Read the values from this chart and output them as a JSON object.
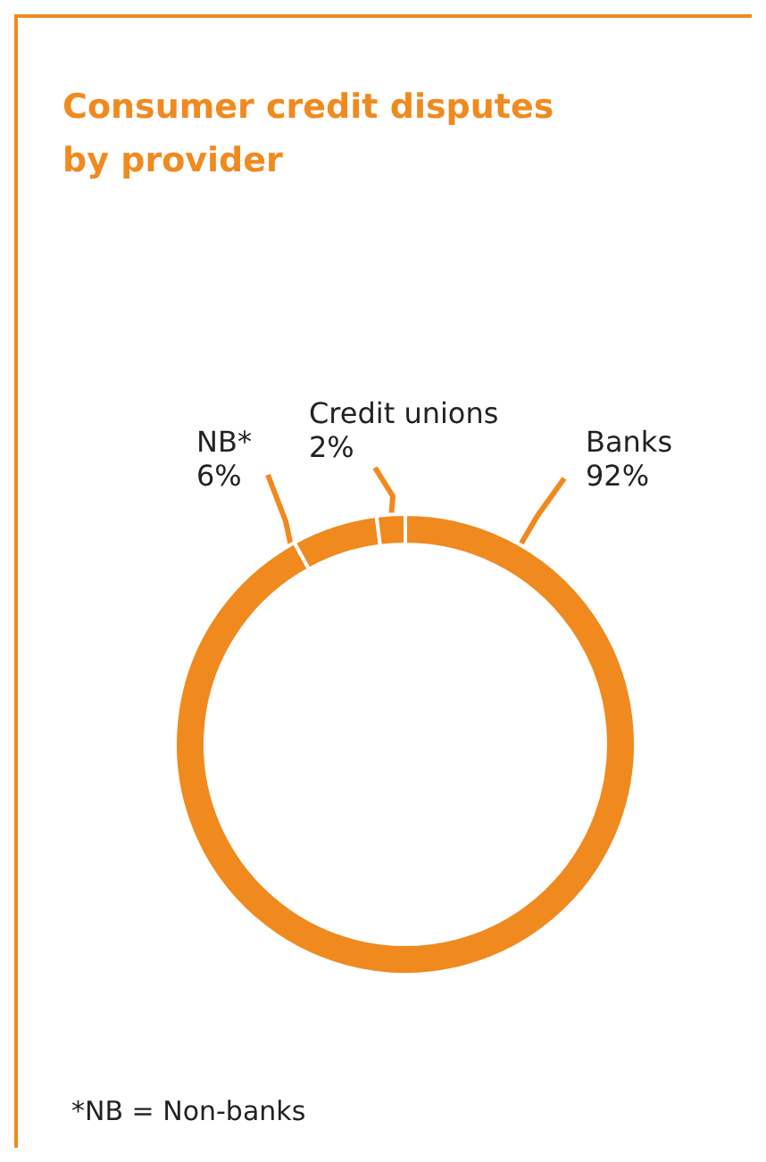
{
  "chart_data": {
    "type": "donut",
    "title": "Consumer credit disputes by provider",
    "categories": [
      "Banks",
      "NB*",
      "Credit unions"
    ],
    "values": [
      92,
      6,
      2
    ],
    "colors": [
      "#f08a1f",
      "#f08a1f",
      "#f08a1f"
    ],
    "value_labels": [
      "92%",
      "6%",
      "2%"
    ],
    "legend": false,
    "annotations": [
      "*NB = Non-banks"
    ]
  }
}
